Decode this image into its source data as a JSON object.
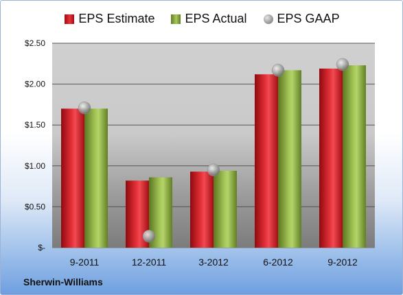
{
  "chart_data": {
    "type": "bar",
    "categories": [
      "9-2011",
      "12-2011",
      "3-2012",
      "6-2012",
      "9-2012"
    ],
    "series": [
      {
        "name": "EPS Estimate",
        "values": [
          1.7,
          0.82,
          0.93,
          2.12,
          2.19
        ],
        "color": "#c8151c",
        "style": "bar"
      },
      {
        "name": "EPS Actual",
        "values": [
          1.7,
          0.86,
          0.94,
          2.17,
          2.23
        ],
        "color": "#8fb040",
        "style": "bar"
      },
      {
        "name": "EPS GAAP",
        "values": [
          1.71,
          0.14,
          0.95,
          2.17,
          2.24
        ],
        "color": "#a6a6a6",
        "style": "marker"
      }
    ],
    "yticks": [
      "$-",
      "$0.50",
      "$1.00",
      "$1.50",
      "$2.00",
      "$2.50"
    ],
    "ylim": [
      0,
      2.5
    ],
    "grid": true,
    "legend_position": "top",
    "company": "Sherwin-Williams"
  }
}
